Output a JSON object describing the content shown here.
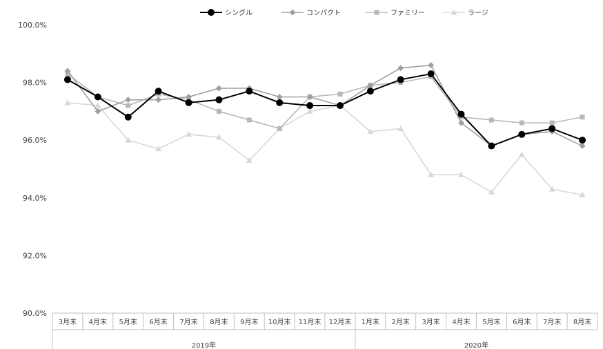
{
  "chart_data": {
    "type": "line",
    "categories": [
      "3月末",
      "4月末",
      "5月末",
      "6月末",
      "7月末",
      "8月末",
      "9月末",
      "10月末",
      "11月末",
      "12月末",
      "1月末",
      "2月末",
      "3月末",
      "4月末",
      "5月末",
      "6月末",
      "7月末",
      "8月末"
    ],
    "year_groups": [
      {
        "label": "2019年",
        "start": 0,
        "end": 9
      },
      {
        "label": "2020年",
        "start": 10,
        "end": 17
      }
    ],
    "yticks": [
      "100.0%",
      "98.0%",
      "96.0%",
      "94.0%",
      "92.0%",
      "90.0%"
    ],
    "ylim": [
      90,
      100
    ],
    "grid": false,
    "legend_position": "top-center",
    "series": [
      {
        "name": "シングル",
        "color": "#000000",
        "marker": "circle",
        "values": [
          98.1,
          97.5,
          96.8,
          97.7,
          97.3,
          97.4,
          97.7,
          97.3,
          97.2,
          97.2,
          97.7,
          98.1,
          98.3,
          96.9,
          95.8,
          96.2,
          96.4,
          96.0
        ]
      },
      {
        "name": "コンパクト",
        "color": "#a0a0a0",
        "marker": "diamond",
        "values": [
          98.4,
          97.0,
          97.4,
          97.4,
          97.5,
          97.8,
          97.8,
          97.5,
          97.5,
          97.2,
          97.9,
          98.5,
          98.6,
          96.6,
          95.8,
          96.2,
          96.3,
          95.8
        ]
      },
      {
        "name": "ファミリー",
        "color": "#b8b8b8",
        "marker": "square",
        "values": [
          98.3,
          97.5,
          97.2,
          97.6,
          97.4,
          97.0,
          96.7,
          96.4,
          97.5,
          97.6,
          97.9,
          98.0,
          98.2,
          96.8,
          96.7,
          96.6,
          96.6,
          96.8
        ]
      },
      {
        "name": "ラージ",
        "color": "#d8d8d8",
        "marker": "triangle",
        "values": [
          97.3,
          97.2,
          96.0,
          95.7,
          96.2,
          96.1,
          95.3,
          96.4,
          97.0,
          97.2,
          96.3,
          96.4,
          94.8,
          94.8,
          94.2,
          95.5,
          94.3,
          94.1
        ]
      }
    ]
  }
}
